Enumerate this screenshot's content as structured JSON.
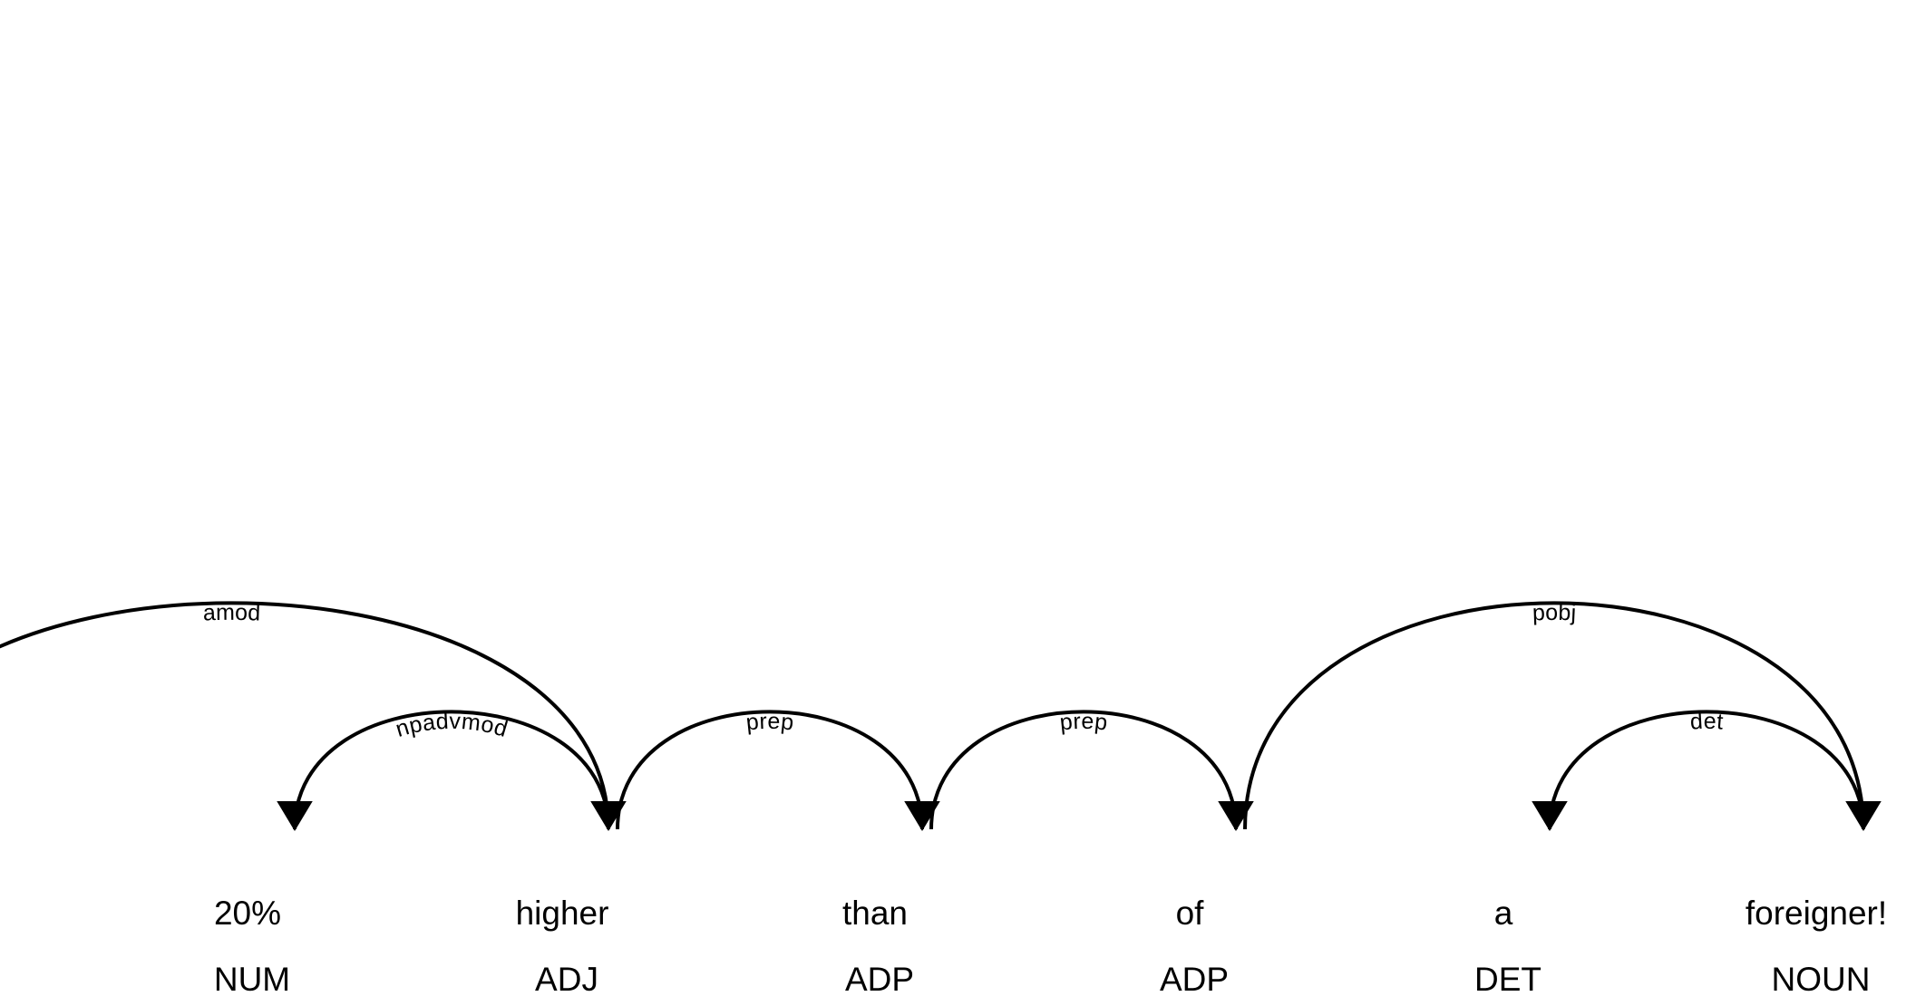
{
  "tokens": [
    {
      "text": "20%",
      "tag": "NUM"
    },
    {
      "text": "higher",
      "tag": "ADJ"
    },
    {
      "text": "than",
      "tag": "ADP"
    },
    {
      "text": "of",
      "tag": "ADP"
    },
    {
      "text": "a",
      "tag": "DET"
    },
    {
      "text": "foreigner!",
      "tag": "NOUN"
    }
  ],
  "arcs": [
    {
      "label": "amod",
      "head": -1,
      "dep": 1
    },
    {
      "label": "npadvmod",
      "head": 1,
      "dep": 0
    },
    {
      "label": "prep",
      "head": 1,
      "dep": 2
    },
    {
      "label": "prep",
      "head": 2,
      "dep": 3
    },
    {
      "label": "pobj",
      "head": 3,
      "dep": 5
    },
    {
      "label": "det",
      "head": 5,
      "dep": 4
    }
  ],
  "colors": {
    "ink": "#000000",
    "background": "#ffffff"
  }
}
